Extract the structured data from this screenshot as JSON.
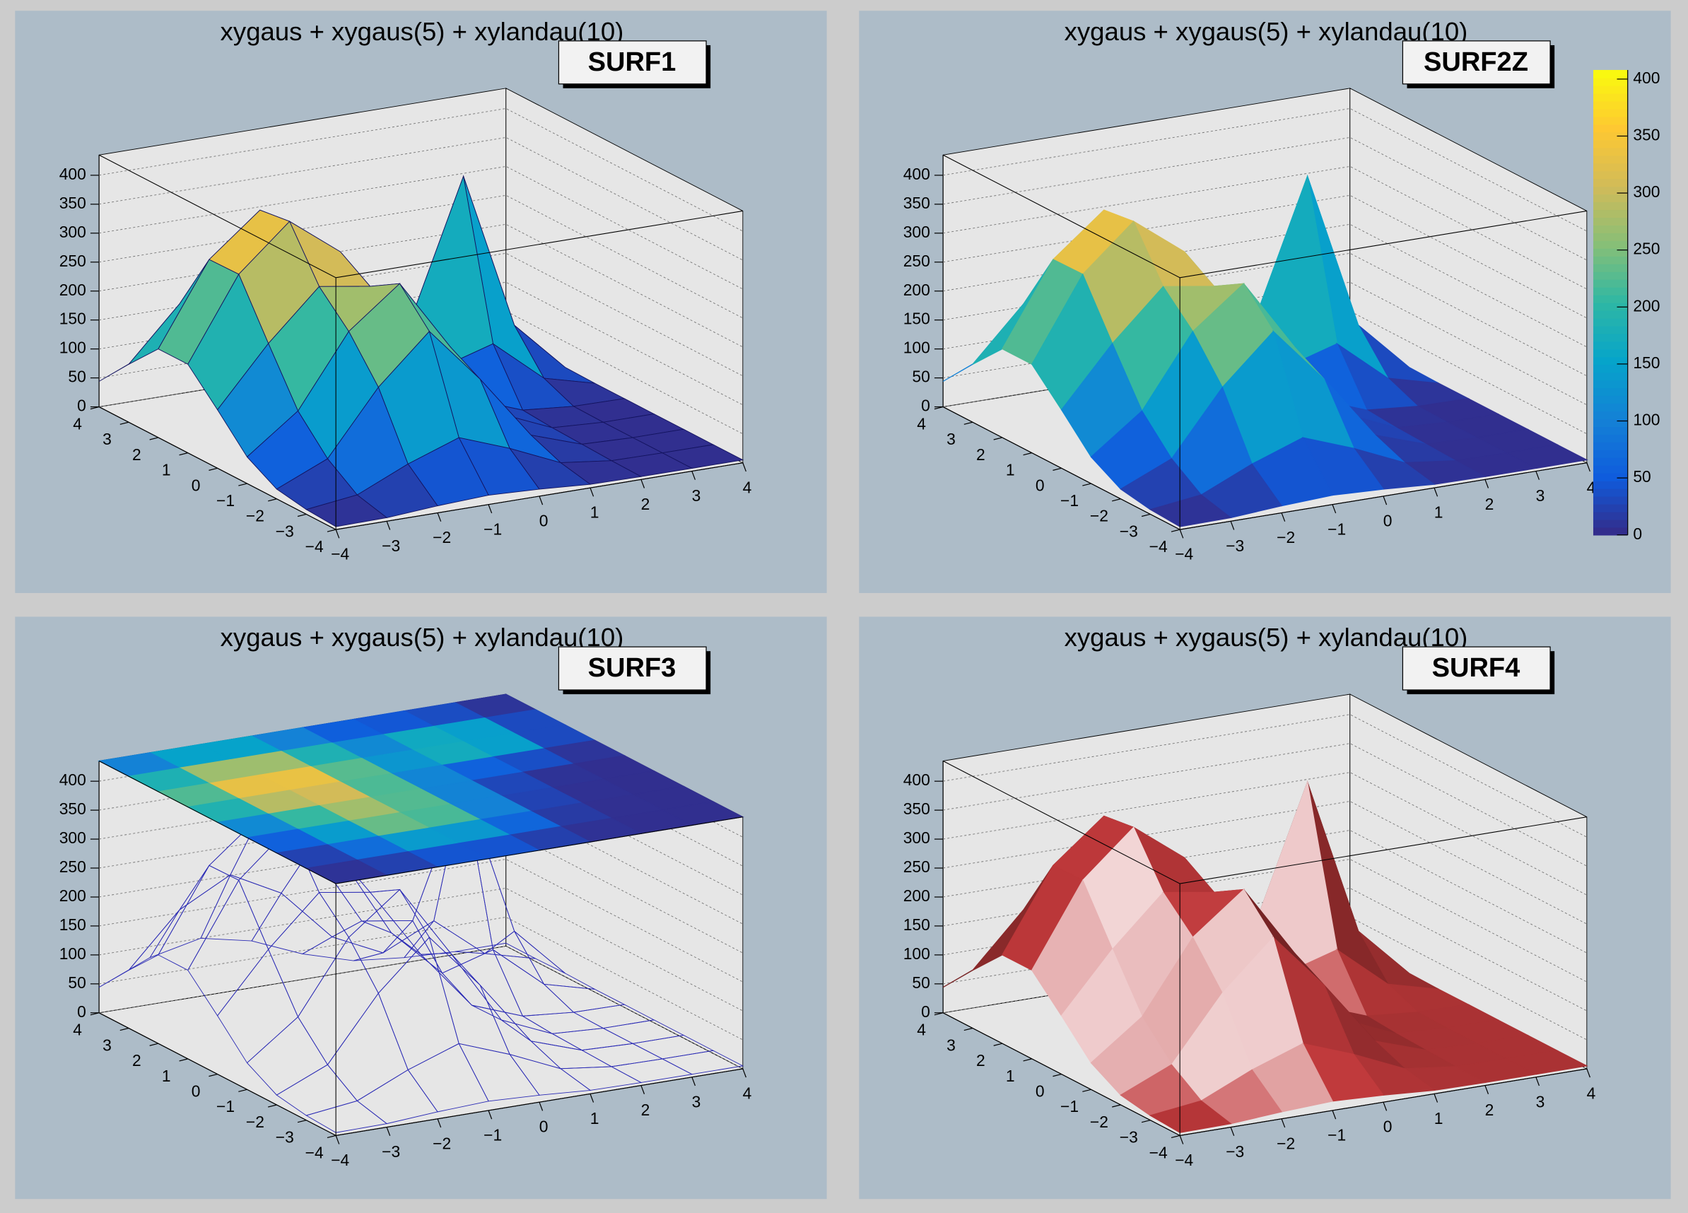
{
  "chart_data": [
    {
      "type": "surface",
      "title": "xygaus + xygaus(5) + xylandau(10)",
      "option": "SURF1",
      "x": [
        -4,
        -3,
        -2,
        -1,
        0,
        1,
        2,
        3,
        4
      ],
      "y": [
        -4,
        -3,
        -2,
        -1,
        0,
        1,
        2,
        3,
        4
      ],
      "z": [
        [
          5,
          6,
          12,
          16,
          12,
          6,
          5,
          5,
          5
        ],
        [
          8,
          19,
          58,
          89,
          56,
          17,
          6,
          5,
          5
        ],
        [
          17,
          55,
          164,
          246,
          149,
          38,
          8,
          5,
          5
        ],
        [
          46,
          111,
          234,
          302,
          178,
          48,
          10,
          5,
          5
        ],
        [
          101,
          201,
          285,
          271,
          149,
          47,
          14,
          6,
          5
        ],
        [
          153,
          294,
          371,
          304,
          160,
          76,
          102,
          28,
          5
        ],
        [
          153,
          293,
          364,
          293,
          154,
          140,
          365,
          93,
          6
        ],
        [
          100,
          190,
          236,
          190,
          100,
          58,
          99,
          28,
          5
        ],
        [
          44,
          81,
          100,
          81,
          44,
          18,
          9,
          5,
          5
        ]
      ],
      "xlim": [
        -4,
        4
      ],
      "ylim": [
        -4,
        4
      ],
      "zlim": [
        0,
        435
      ],
      "xticks": [
        {
          "value": -4,
          "label": "−4"
        },
        {
          "value": -3,
          "label": "−3"
        },
        {
          "value": -2,
          "label": "−2"
        },
        {
          "value": -1,
          "label": "−1"
        },
        0,
        1,
        2,
        3,
        4
      ],
      "yticks": [
        {
          "value": -4,
          "label": "−4"
        },
        {
          "value": -3,
          "label": "−3"
        },
        {
          "value": -2,
          "label": "−2"
        },
        {
          "value": -1,
          "label": "−1"
        },
        0,
        1,
        2,
        3,
        4
      ],
      "zticks": [
        0,
        50,
        100,
        150,
        200,
        250,
        300,
        350,
        400
      ],
      "color_range": [
        0,
        408
      ],
      "palette": [
        "#352a87",
        "#0f5cdd",
        "#1481d6",
        "#06a4ca",
        "#2eb7a4",
        "#87bf77",
        "#d1bb59",
        "#fec832",
        "#f9fb0e"
      ],
      "line_color": "#141460"
    },
    {
      "type": "surface",
      "title": "xygaus + xygaus(5) + xylandau(10)",
      "option": "SURF2Z",
      "x": [
        -4,
        -3,
        -2,
        -1,
        0,
        1,
        2,
        3,
        4
      ],
      "y": [
        -4,
        -3,
        -2,
        -1,
        0,
        1,
        2,
        3,
        4
      ],
      "z": [
        [
          5,
          6,
          12,
          16,
          12,
          6,
          5,
          5,
          5
        ],
        [
          8,
          19,
          58,
          89,
          56,
          17,
          6,
          5,
          5
        ],
        [
          17,
          55,
          164,
          246,
          149,
          38,
          8,
          5,
          5
        ],
        [
          46,
          111,
          234,
          302,
          178,
          48,
          10,
          5,
          5
        ],
        [
          101,
          201,
          285,
          271,
          149,
          47,
          14,
          6,
          5
        ],
        [
          153,
          294,
          371,
          304,
          160,
          76,
          102,
          28,
          5
        ],
        [
          153,
          293,
          364,
          293,
          154,
          140,
          365,
          93,
          6
        ],
        [
          100,
          190,
          236,
          190,
          100,
          58,
          99,
          28,
          5
        ],
        [
          44,
          81,
          100,
          81,
          44,
          18,
          9,
          5,
          5
        ]
      ],
      "xlim": [
        -4,
        4
      ],
      "ylim": [
        -4,
        4
      ],
      "zlim": [
        0,
        435
      ],
      "xticks": [
        {
          "value": -4,
          "label": "−4"
        },
        {
          "value": -3,
          "label": "−3"
        },
        {
          "value": -2,
          "label": "−2"
        },
        {
          "value": -1,
          "label": "−1"
        },
        0,
        1,
        2,
        3,
        4
      ],
      "yticks": [
        {
          "value": -4,
          "label": "−4"
        },
        {
          "value": -3,
          "label": "−3"
        },
        {
          "value": -2,
          "label": "−2"
        },
        {
          "value": -1,
          "label": "−1"
        },
        0,
        1,
        2,
        3,
        4
      ],
      "zticks": [
        0,
        50,
        100,
        150,
        200,
        250,
        300,
        350,
        400
      ],
      "color_range": [
        0,
        408
      ],
      "palette": [
        "#352a87",
        "#0f5cdd",
        "#1481d6",
        "#06a4ca",
        "#2eb7a4",
        "#87bf77",
        "#d1bb59",
        "#fec832",
        "#f9fb0e"
      ],
      "colorbar_ticks": [
        0,
        50,
        100,
        150,
        200,
        250,
        300,
        350,
        400
      ]
    },
    {
      "type": "surface",
      "title": "xygaus + xygaus(5) + xylandau(10)",
      "option": "SURF3",
      "x": [
        -4,
        -3,
        -2,
        -1,
        0,
        1,
        2,
        3,
        4
      ],
      "y": [
        -4,
        -3,
        -2,
        -1,
        0,
        1,
        2,
        3,
        4
      ],
      "z": [
        [
          5,
          6,
          12,
          16,
          12,
          6,
          5,
          5,
          5
        ],
        [
          8,
          19,
          58,
          89,
          56,
          17,
          6,
          5,
          5
        ],
        [
          17,
          55,
          164,
          246,
          149,
          38,
          8,
          5,
          5
        ],
        [
          46,
          111,
          234,
          302,
          178,
          48,
          10,
          5,
          5
        ],
        [
          101,
          201,
          285,
          271,
          149,
          47,
          14,
          6,
          5
        ],
        [
          153,
          294,
          371,
          304,
          160,
          76,
          102,
          28,
          5
        ],
        [
          153,
          293,
          364,
          293,
          154,
          140,
          365,
          93,
          6
        ],
        [
          100,
          190,
          236,
          190,
          100,
          58,
          99,
          28,
          5
        ],
        [
          44,
          81,
          100,
          81,
          44,
          18,
          9,
          5,
          5
        ]
      ],
      "xlim": [
        -4,
        4
      ],
      "ylim": [
        -4,
        4
      ],
      "zlim": [
        0,
        435
      ],
      "xticks": [
        {
          "value": -4,
          "label": "−4"
        },
        {
          "value": -3,
          "label": "−3"
        },
        {
          "value": -2,
          "label": "−2"
        },
        {
          "value": -1,
          "label": "−1"
        },
        0,
        1,
        2,
        3,
        4
      ],
      "yticks": [
        {
          "value": -4,
          "label": "−4"
        },
        {
          "value": -3,
          "label": "−3"
        },
        {
          "value": -2,
          "label": "−2"
        },
        {
          "value": -1,
          "label": "−1"
        },
        0,
        1,
        2,
        3,
        4
      ],
      "zticks": [
        0,
        50,
        100,
        150,
        200,
        250,
        300,
        350,
        400
      ],
      "color_range": [
        0,
        408
      ],
      "palette": [
        "#352a87",
        "#0f5cdd",
        "#1481d6",
        "#06a4ca",
        "#2eb7a4",
        "#87bf77",
        "#d1bb59",
        "#fec832",
        "#f9fb0e"
      ],
      "line_color": "#2a2ab4"
    },
    {
      "type": "surface",
      "title": "xygaus + xygaus(5) + xylandau(10)",
      "option": "SURF4",
      "x": [
        -4,
        -3,
        -2,
        -1,
        0,
        1,
        2,
        3,
        4
      ],
      "y": [
        -4,
        -3,
        -2,
        -1,
        0,
        1,
        2,
        3,
        4
      ],
      "z": [
        [
          5,
          6,
          12,
          16,
          12,
          6,
          5,
          5,
          5
        ],
        [
          8,
          19,
          58,
          89,
          56,
          17,
          6,
          5,
          5
        ],
        [
          17,
          55,
          164,
          246,
          149,
          38,
          8,
          5,
          5
        ],
        [
          46,
          111,
          234,
          302,
          178,
          48,
          10,
          5,
          5
        ],
        [
          101,
          201,
          285,
          271,
          149,
          47,
          14,
          6,
          5
        ],
        [
          153,
          294,
          371,
          304,
          160,
          76,
          102,
          28,
          5
        ],
        [
          153,
          293,
          364,
          293,
          154,
          140,
          365,
          93,
          6
        ],
        [
          100,
          190,
          236,
          190,
          100,
          58,
          99,
          28,
          5
        ],
        [
          44,
          81,
          100,
          81,
          44,
          18,
          9,
          5,
          5
        ]
      ],
      "xlim": [
        -4,
        4
      ],
      "ylim": [
        -4,
        4
      ],
      "zlim": [
        0,
        435
      ],
      "xticks": [
        {
          "value": -4,
          "label": "−4"
        },
        {
          "value": -3,
          "label": "−3"
        },
        {
          "value": -2,
          "label": "−2"
        },
        {
          "value": -1,
          "label": "−1"
        },
        0,
        1,
        2,
        3,
        4
      ],
      "yticks": [
        {
          "value": -4,
          "label": "−4"
        },
        {
          "value": -3,
          "label": "−3"
        },
        {
          "value": -2,
          "label": "−2"
        },
        {
          "value": -1,
          "label": "−1"
        },
        0,
        1,
        2,
        3,
        4
      ],
      "zticks": [
        0,
        50,
        100,
        150,
        200,
        250,
        300,
        350,
        400
      ],
      "color": "#c0393b"
    }
  ]
}
